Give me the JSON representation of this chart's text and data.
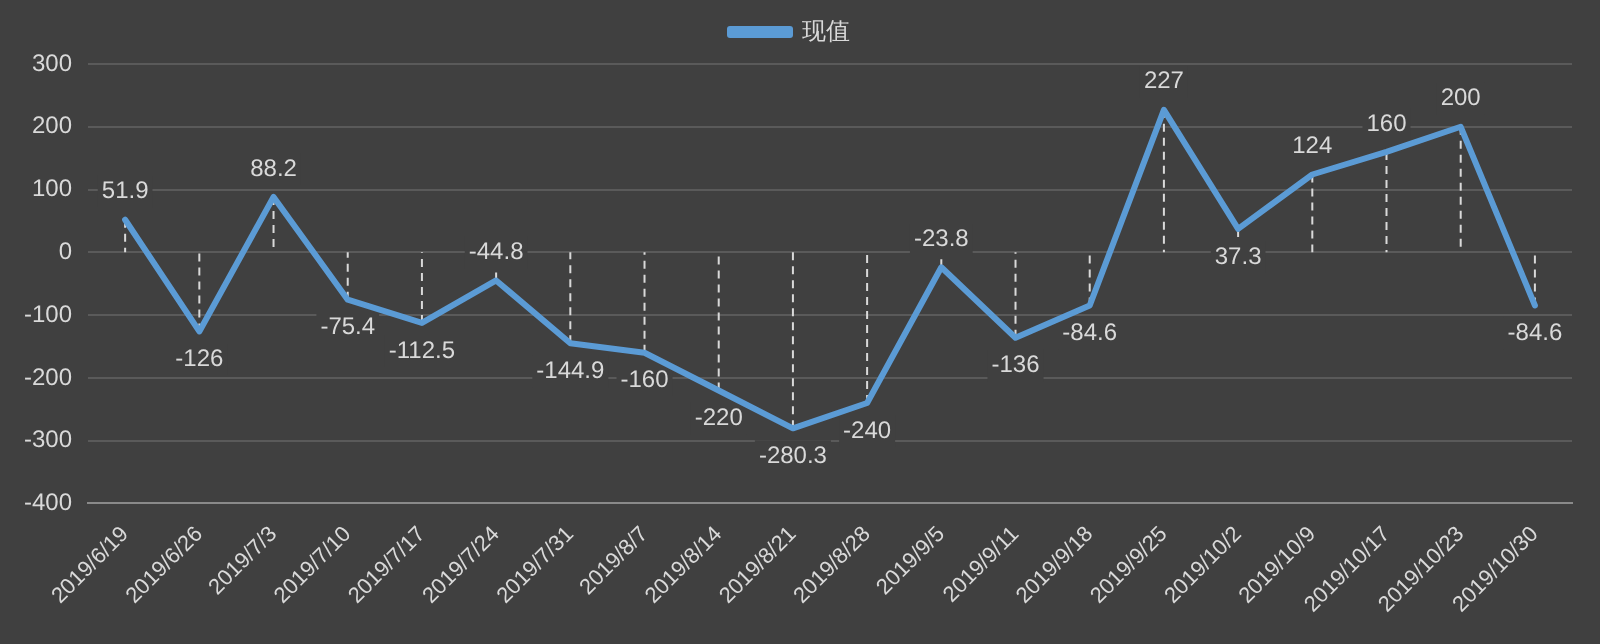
{
  "chart_data": {
    "type": "line",
    "categories": [
      "2019/6/19",
      "2019/6/26",
      "2019/7/3",
      "2019/7/10",
      "2019/7/17",
      "2019/7/24",
      "2019/7/31",
      "2019/8/7",
      "2019/8/14",
      "2019/8/21",
      "2019/8/28",
      "2019/9/5",
      "2019/9/11",
      "2019/9/18",
      "2019/9/25",
      "2019/10/2",
      "2019/10/9",
      "2019/10/17",
      "2019/10/23",
      "2019/10/30"
    ],
    "series": [
      {
        "name": "现值",
        "color": "#5b9bd5",
        "values": [
          51.9,
          -126,
          88.2,
          -75.4,
          -112.5,
          -44.8,
          -144.9,
          -160,
          -220,
          -280.3,
          -240,
          -23.8,
          -136,
          -84.6,
          227,
          37.3,
          124,
          160,
          200,
          -84.6
        ]
      }
    ],
    "ylim": [
      -400,
      300
    ],
    "yticks": [
      -400,
      -300,
      -200,
      -100,
      0,
      100,
      200,
      300
    ],
    "grid": "y",
    "legend": "top",
    "data_labels": true,
    "marker": "none",
    "line_style": "solid"
  }
}
